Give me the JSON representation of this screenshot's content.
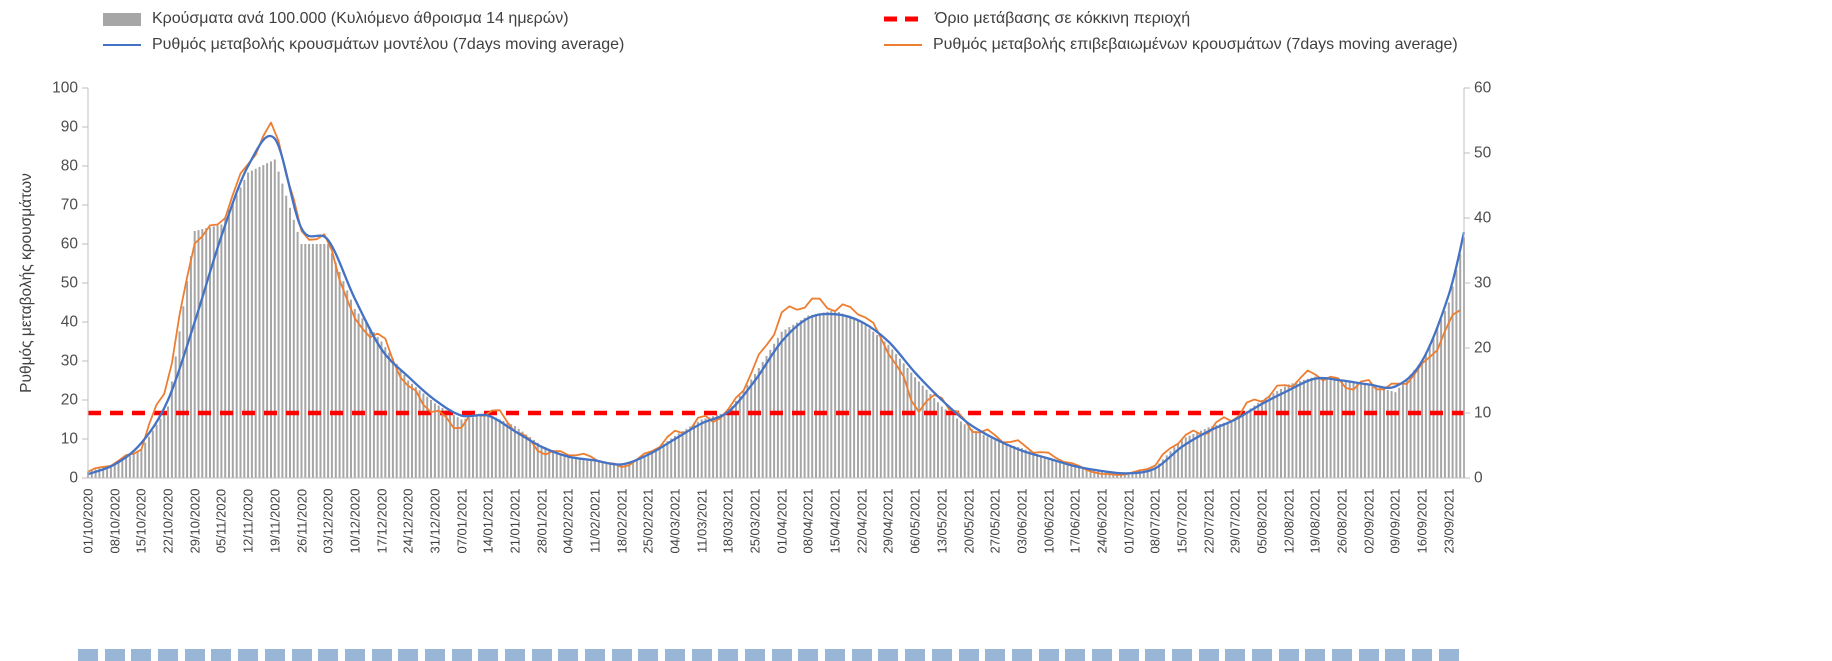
{
  "legend": {
    "bars": {
      "label": "Κρούσματα ανά 100.000 (Κυλιόμενο άθροισμα 14 ημερών)",
      "color": "#a6a6a6"
    },
    "threshold": {
      "label": "Όριο μετάβασης σε κόκκινη περιοχή",
      "color": "#ff0000"
    },
    "model": {
      "label": "Ρυθμός μεταβολής κρουσμάτων μοντέλου (7days moving average)",
      "color": "#4472c4"
    },
    "confirmed": {
      "label": "Ρυθμός μεταβολής επιβεβαιωμένων κρουσμάτων (7days moving average)",
      "color": "#ed7d31"
    }
  },
  "chart_data": {
    "type": "combo",
    "title": "",
    "grid": false,
    "legend_position": "top",
    "x": {
      "tick_labels": [
        "01/10/2020",
        "08/10/2020",
        "15/10/2020",
        "22/10/2020",
        "29/10/2020",
        "05/11/2020",
        "12/11/2020",
        "19/11/2020",
        "26/11/2020",
        "03/12/2020",
        "10/12/2020",
        "17/12/2020",
        "24/12/2020",
        "31/12/2020",
        "07/01/2021",
        "14/01/2021",
        "21/01/2021",
        "28/01/2021",
        "04/02/2021",
        "11/02/2021",
        "18/02/2021",
        "25/02/2021",
        "04/03/2021",
        "11/03/2021",
        "18/03/2021",
        "25/03/2021",
        "01/04/2021",
        "08/04/2021",
        "15/04/2021",
        "22/04/2021",
        "29/04/2021",
        "06/05/2021",
        "13/05/2021",
        "20/05/2021",
        "27/05/2021",
        "03/06/2021",
        "10/06/2021",
        "17/06/2021",
        "24/06/2021",
        "01/07/2021",
        "08/07/2021",
        "15/07/2021",
        "22/07/2021",
        "29/07/2021",
        "05/08/2021",
        "12/08/2021",
        "19/08/2021",
        "26/08/2021",
        "02/09/2021",
        "09/09/2021",
        "16/09/2021",
        "23/09/2021"
      ],
      "days_per_tick": 7,
      "total_days": 361
    },
    "axis_left": {
      "label": "Ρυθμός μεταβολής κρουσμάτων",
      "range": [
        0,
        100
      ],
      "tick_step": 10,
      "ticks": [
        0,
        10,
        20,
        30,
        40,
        50,
        60,
        70,
        80,
        90,
        100
      ]
    },
    "axis_right": {
      "label": "",
      "range": [
        0,
        60
      ],
      "tick_step": 10,
      "ticks": [
        0,
        10,
        20,
        30,
        40,
        50,
        60
      ]
    },
    "series": [
      {
        "name": "Κρούσματα ανά 100.000 (Κυλιόμενο άθροισμα 14 ημερών)",
        "type": "bar",
        "axis": "right",
        "color": "#a6a6a6",
        "weekly_values": [
          1,
          2.2,
          4.5,
          11,
          38,
          39,
          47,
          49,
          36,
          36,
          26,
          21,
          15,
          11.5,
          9,
          9.8,
          8,
          5,
          3.2,
          2.6,
          2,
          3.6,
          6.5,
          9,
          10.2,
          16,
          22.5,
          25,
          25.8,
          24,
          20.5,
          15.5,
          11,
          7.8,
          5.8,
          4.6,
          3,
          2,
          1,
          0.7,
          1.6,
          6,
          7.8,
          9,
          12,
          14.4,
          15.6,
          15,
          14.4,
          13.2,
          18,
          27
        ],
        "end_value": 37
      },
      {
        "name": "Ρυθμός μεταβολής κρουσμάτων μοντέλου (7days moving average)",
        "type": "line",
        "axis": "left",
        "color": "#4472c4",
        "jagged": false,
        "weekly_values": [
          1,
          3.5,
          9,
          20,
          40,
          62,
          80,
          87,
          64,
          61,
          46,
          33,
          26,
          20,
          16,
          16,
          12,
          8,
          5.5,
          4.5,
          3.5,
          6,
          10,
          14,
          17,
          25,
          35,
          41,
          42,
          40,
          35,
          27,
          20,
          14,
          10,
          7,
          5,
          3,
          1.8,
          1.2,
          2.5,
          8,
          12,
          15,
          19,
          22.5,
          25.5,
          25,
          24,
          23.5,
          30,
          47
        ],
        "end_value": 63
      },
      {
        "name": "Ρυθμός μεταβολής επιβεβαιωμένων κρουσμάτων (7days moving average)",
        "type": "line",
        "axis": "left",
        "color": "#ed7d31",
        "jagged": true,
        "weekly_values": [
          1.5,
          4,
          8,
          24,
          62,
          66,
          80,
          92,
          63,
          60,
          40,
          37,
          22,
          17,
          14,
          17,
          13,
          7,
          6,
          5,
          3,
          6,
          11,
          16,
          16,
          28,
          43,
          45,
          43,
          44,
          33,
          17,
          22,
          13,
          10,
          9,
          6,
          3,
          1,
          1,
          3,
          11,
          13,
          15,
          21,
          25,
          26,
          24,
          25,
          22,
          28,
          40
        ],
        "end_value": 45
      }
    ],
    "threshold": {
      "name": "Όριο μετάβασης σε κόκκινη περιοχή",
      "axis": "right",
      "value": 10,
      "color": "#ff0000",
      "style": "dashed"
    }
  }
}
